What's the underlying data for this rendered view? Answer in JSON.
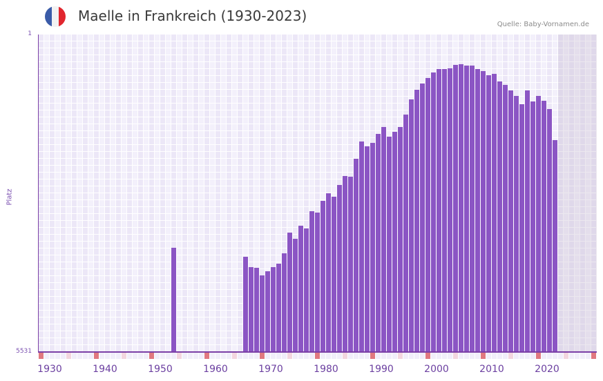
{
  "header": {
    "title": "Maelle in Frankreich (1930-2023)",
    "source": "Quelle: Baby-Vornamen.de",
    "flag_colors": [
      "#3a5ba8",
      "#f2f2f2",
      "#e1262e"
    ]
  },
  "colors": {
    "bar": "#8b55c4",
    "axis": "#7b3fa6",
    "label": "#6b3fa0",
    "grid_a": "#ece7f7",
    "grid_b": "#f3f0fb",
    "future_shade": "#e4dfed",
    "marker_decade": "#e07880",
    "marker_half": "#f3d6df",
    "marker_plain": "#f1eefa"
  },
  "chart_data": {
    "type": "bar",
    "title": "Maelle in Frankreich (1930-2023)",
    "xlabel": "",
    "ylabel": "Platz",
    "y_axis_inverted": true,
    "ylim": [
      1,
      5531
    ],
    "y_ticks": [
      "1",
      "5531"
    ],
    "x_range": [
      1930,
      2030
    ],
    "x_ticks": [
      "1930",
      "1940",
      "1950",
      "1960",
      "1970",
      "1980",
      "1990",
      "2000",
      "2010",
      "2020"
    ],
    "grid": true,
    "legend": null,
    "future_shaded_from": 2024,
    "categories": [
      1954,
      1967,
      1968,
      1969,
      1970,
      1971,
      1972,
      1973,
      1974,
      1975,
      1976,
      1977,
      1978,
      1979,
      1980,
      1981,
      1982,
      1983,
      1984,
      1985,
      1986,
      1987,
      1988,
      1989,
      1990,
      1991,
      1992,
      1993,
      1994,
      1995,
      1996,
      1997,
      1998,
      1999,
      2000,
      2001,
      2002,
      2003,
      2004,
      2005,
      2006,
      2007,
      2008,
      2009,
      2010,
      2011,
      2012,
      2013,
      2014,
      2015,
      2016,
      2017,
      2018,
      2019,
      2020,
      2021,
      2022,
      2023
    ],
    "values": [
      3716,
      3872,
      4051,
      4064,
      4196,
      4124,
      4052,
      3991,
      3811,
      3451,
      3559,
      3331,
      3379,
      3079,
      3103,
      2898,
      2766,
      2826,
      2622,
      2466,
      2478,
      2165,
      1864,
      1948,
      1888,
      1732,
      1612,
      1780,
      1696,
      1612,
      1396,
      1131,
      963,
      855,
      758,
      662,
      602,
      602,
      590,
      530,
      518,
      542,
      542,
      602,
      638,
      710,
      686,
      818,
      879,
      975,
      1071,
      1215,
      975,
      1167,
      1071,
      1155,
      1300,
      1840
    ],
    "value_label": "Platz (rank, estimated)"
  }
}
